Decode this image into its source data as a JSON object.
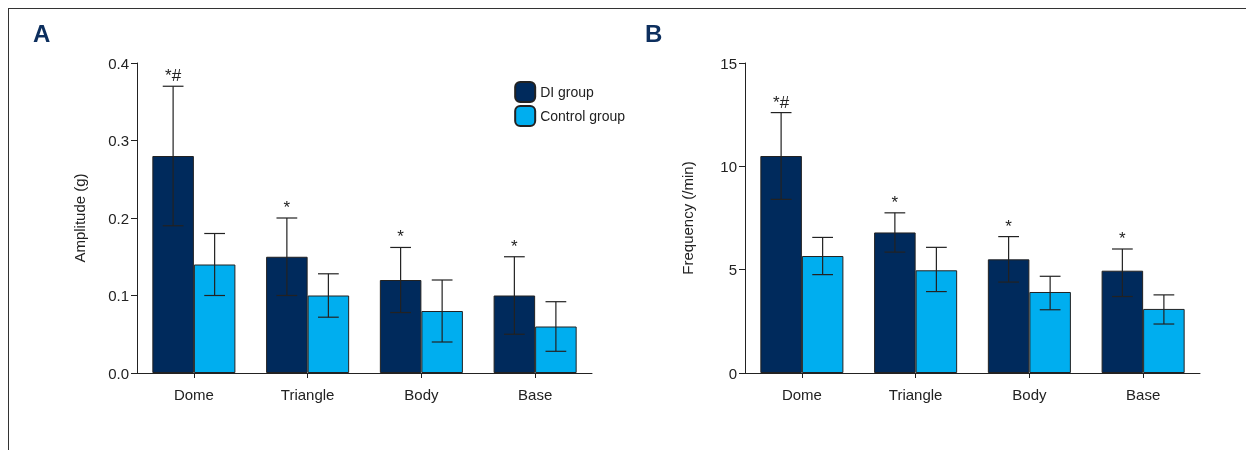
{
  "chart_data": [
    {
      "type": "bar",
      "title": "A",
      "ylabel": "Amplitude (g)",
      "categories": [
        "Dome",
        "Triangle",
        "Body",
        "Base"
      ],
      "series": [
        {
          "name": "DI group",
          "color": "#002a5c",
          "values": [
            0.28,
            0.15,
            0.12,
            0.1
          ],
          "errors": [
            0.09,
            0.05,
            0.042,
            0.05
          ]
        },
        {
          "name": "Control group",
          "color": "#00aeef",
          "values": [
            0.14,
            0.1,
            0.08,
            0.06
          ],
          "errors": [
            0.04,
            0.028,
            0.04,
            0.032
          ]
        }
      ],
      "ylim": [
        0,
        0.4
      ],
      "yticks": [
        {
          "value": 0,
          "label": "0.0"
        },
        0.1,
        0.2,
        0.3,
        0.4
      ],
      "grid": false,
      "legend": "top right",
      "annotations": [
        "*#",
        "*",
        "*",
        "*"
      ]
    },
    {
      "type": "bar",
      "title": "B",
      "ylabel": "Frequency (/min)",
      "categories": [
        "Dome",
        "Triangle",
        "Body",
        "Base"
      ],
      "series": [
        {
          "color": "#002a5c",
          "values": [
            10.5,
            6.8,
            5.5,
            4.95
          ],
          "errors": [
            2.1,
            0.95,
            1.1,
            [
              3.7,
              6.0
            ]
          ]
        },
        {
          "color": "#00aeef",
          "values": [
            5.66,
            4.97,
            3.92,
            3.1
          ],
          "errors": [
            0.9,
            [
              3.94,
              6.08
            ],
            [
              3.06,
              4.68
            ],
            [
              2.37,
              3.78
            ]
          ]
        }
      ],
      "ylim": [
        0,
        15
      ],
      "yticks": [
        0,
        5,
        10,
        15
      ],
      "grid": false,
      "legend": false,
      "annotations": [
        "*#",
        "*",
        "*",
        "*"
      ]
    }
  ]
}
